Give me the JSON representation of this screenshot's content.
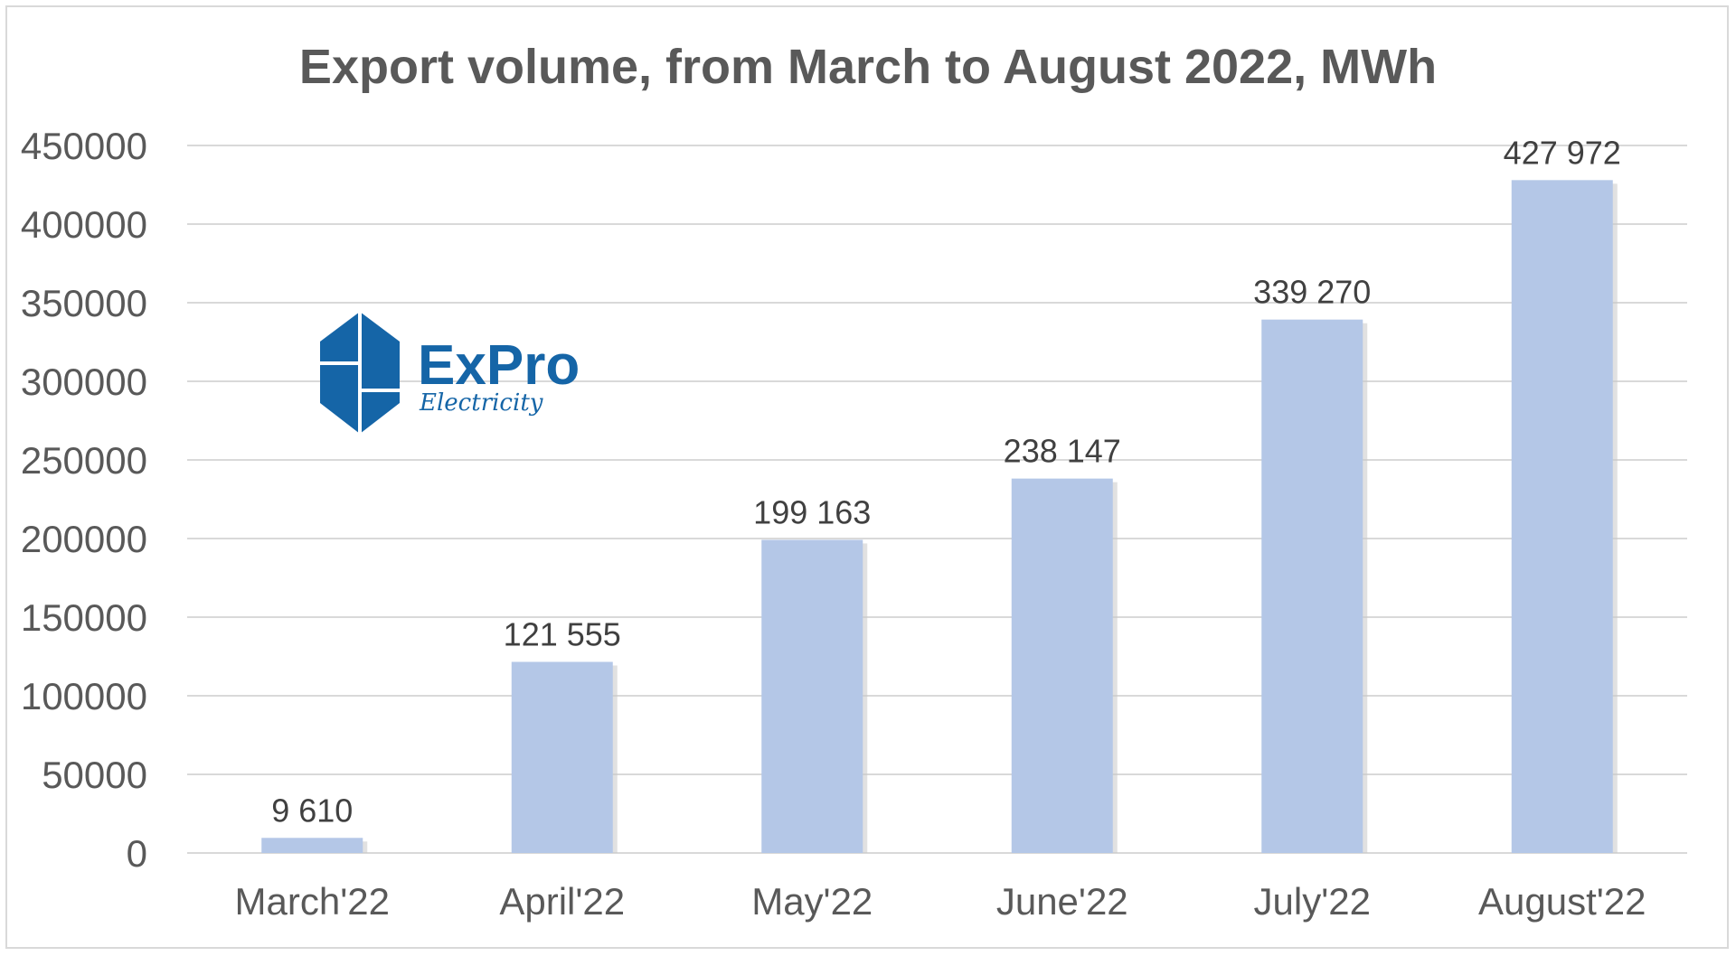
{
  "chart_data": {
    "type": "bar",
    "title": "Export volume, from March to August 2022, MWh",
    "categories": [
      "March'22",
      "April'22",
      "May'22",
      "June'22",
      "July'22",
      "August'22"
    ],
    "values": [
      9610,
      121555,
      199163,
      238147,
      339270,
      427972
    ],
    "data_labels": [
      "9 610",
      "121 555",
      "199 163",
      "238 147",
      "339 270",
      "427 972"
    ],
    "yticks": [
      "0",
      "50000",
      "100000",
      "150000",
      "200000",
      "250000",
      "300000",
      "350000",
      "400000",
      "450000"
    ],
    "ylim": [
      0,
      450000
    ],
    "xlabel": "",
    "ylabel": "",
    "grid": true,
    "bar_color": "#b4c7e7"
  },
  "logo": {
    "name_prefix": "Ex",
    "name_suffix": "Pro",
    "tagline": "Electricity",
    "color": "#1565a7"
  }
}
